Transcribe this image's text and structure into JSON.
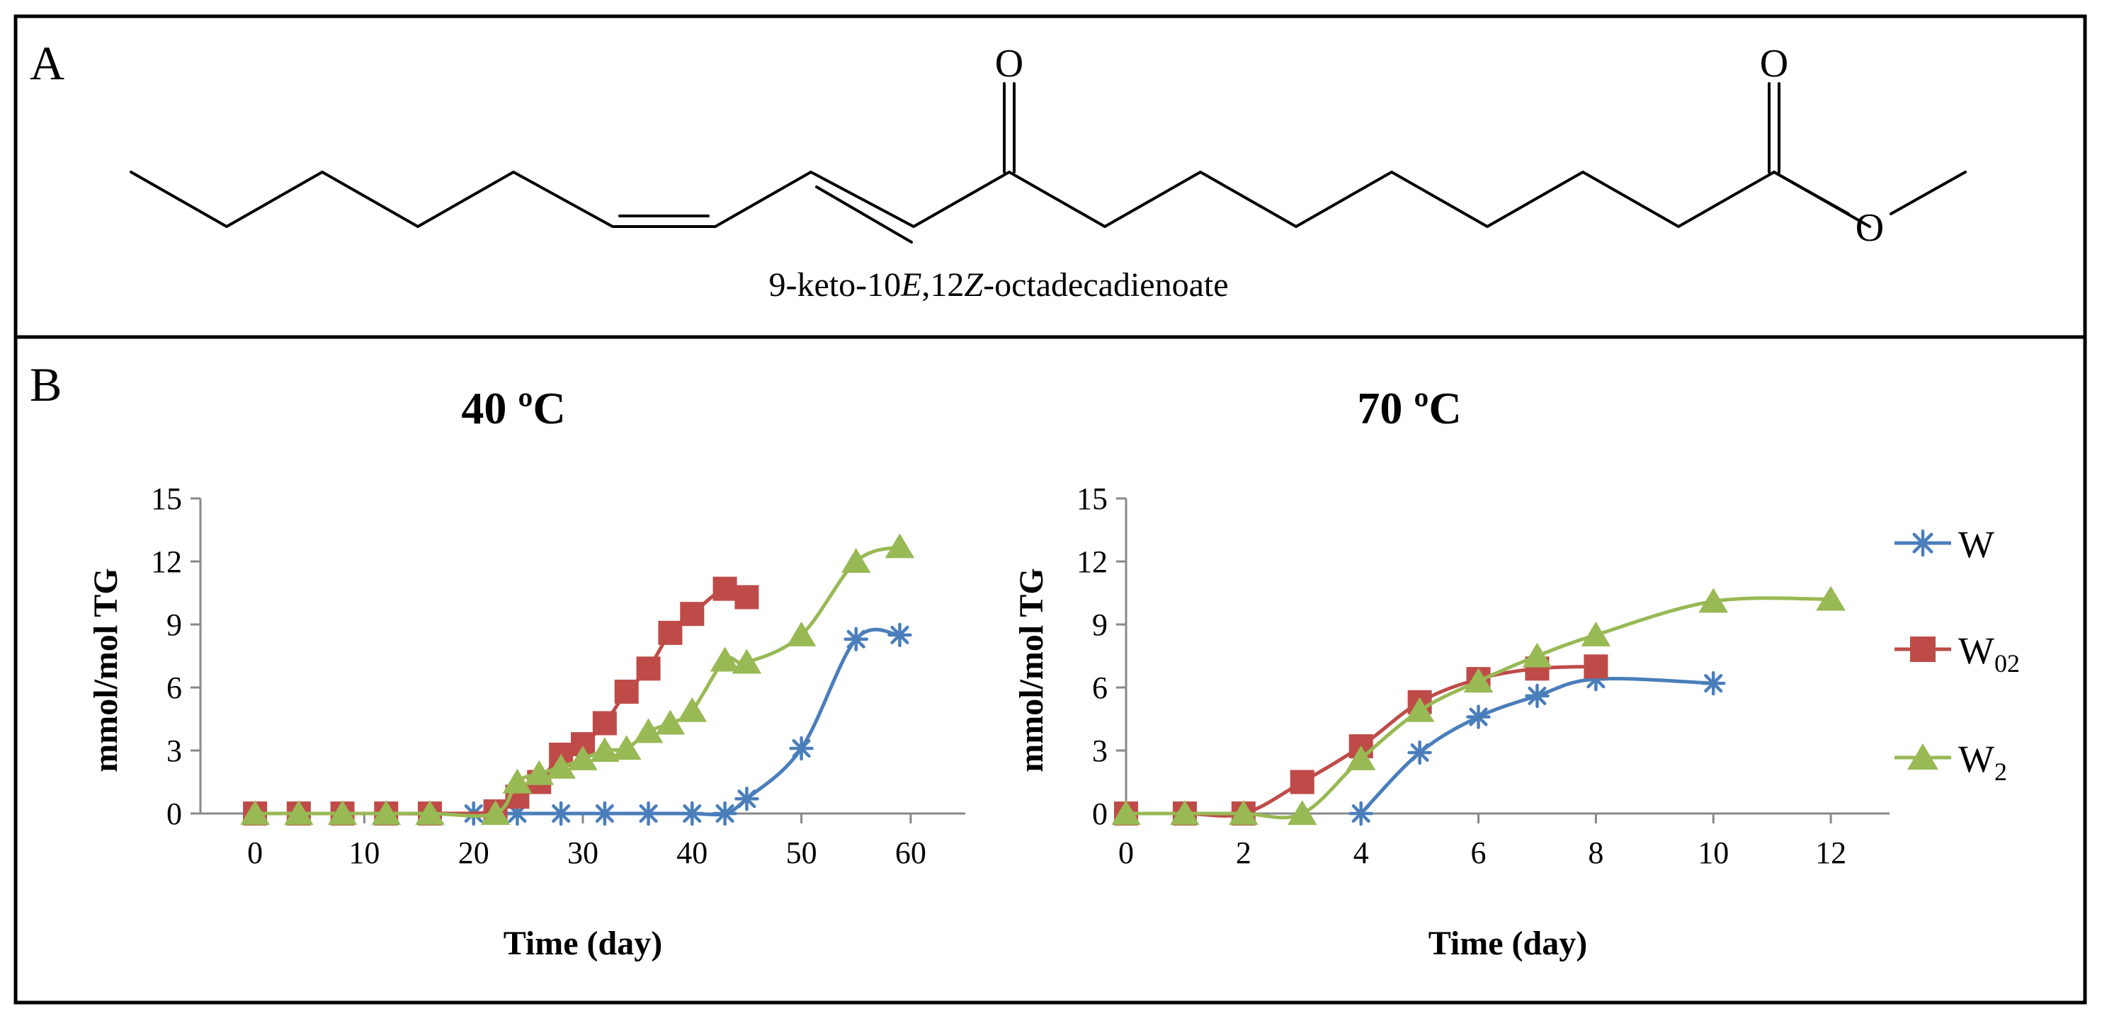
{
  "panel_a": {
    "letter": "A",
    "compound_name_parts": [
      "9-keto-10",
      "E",
      ",12",
      "Z",
      "-octadecadienoate"
    ],
    "atoms": {
      "ketone_oxygen": "O",
      "carbonyl_oxygen": "O",
      "ester_oxygen": "O"
    }
  },
  "panel_b": {
    "letter": "B"
  },
  "legend": [
    {
      "name": "W",
      "base": "W",
      "sub": "",
      "color": "#4a7ebb",
      "marker": "asterisk"
    },
    {
      "name": "W02",
      "base": "W",
      "sub": "02",
      "color": "#be4b48",
      "marker": "square"
    },
    {
      "name": "W2",
      "base": "W",
      "sub": "2",
      "color": "#98b954",
      "marker": "triangle"
    }
  ],
  "chart_data": [
    {
      "type": "line",
      "title": "40 ºC",
      "xlabel": "Time (day)",
      "ylabel": "mmol/mol TG",
      "xlim": [
        -5,
        65
      ],
      "ylim": [
        0,
        15
      ],
      "xticks": [
        0,
        10,
        20,
        30,
        40,
        50,
        60
      ],
      "yticks": [
        0,
        3,
        6,
        9,
        12,
        15
      ],
      "series": [
        {
          "name": "W",
          "x": [
            20,
            24,
            28,
            32,
            36,
            40,
            43,
            45,
            50,
            55,
            59
          ],
          "y": [
            0,
            0,
            0,
            0,
            0,
            0,
            0,
            0.7,
            3.1,
            8.3,
            8.5
          ]
        },
        {
          "name": "W02",
          "x": [
            0,
            4,
            8,
            12,
            16,
            22,
            24,
            26,
            28,
            30,
            32,
            34,
            36,
            38,
            40,
            43,
            45
          ],
          "y": [
            0,
            0,
            0,
            0,
            0,
            0.1,
            0.8,
            1.5,
            2.8,
            3.3,
            4.3,
            5.8,
            6.9,
            8.6,
            9.5,
            10.7,
            10.3
          ]
        },
        {
          "name": "W2",
          "x": [
            0,
            4,
            8,
            12,
            16,
            22,
            24,
            26,
            28,
            30,
            32,
            34,
            36,
            38,
            40,
            43,
            45,
            50,
            55,
            59
          ],
          "y": [
            0,
            0,
            0,
            0,
            0,
            0,
            1.5,
            1.9,
            2.2,
            2.6,
            3.0,
            3.1,
            3.9,
            4.3,
            4.9,
            7.3,
            7.2,
            8.5,
            12.0,
            12.7
          ]
        }
      ]
    },
    {
      "type": "line",
      "title": "70 ºC",
      "xlabel": "Time (day)",
      "ylabel": "mmol/mol TG",
      "xlim": [
        0,
        13
      ],
      "ylim": [
        0,
        15
      ],
      "xticks": [
        0,
        2,
        4,
        6,
        8,
        10,
        12
      ],
      "yticks": [
        0,
        3,
        6,
        9,
        12,
        15
      ],
      "series": [
        {
          "name": "W",
          "x": [
            4,
            5,
            6,
            7,
            8,
            10
          ],
          "y": [
            0,
            2.9,
            4.6,
            5.6,
            6.4,
            6.2
          ]
        },
        {
          "name": "W02",
          "x": [
            0,
            1,
            2,
            3,
            4,
            5,
            6,
            7,
            8
          ],
          "y": [
            0,
            0,
            0,
            1.5,
            3.2,
            5.3,
            6.4,
            6.9,
            7.0
          ]
        },
        {
          "name": "W2",
          "x": [
            0,
            1,
            2,
            3,
            4,
            5,
            6,
            7,
            8,
            10,
            12
          ],
          "y": [
            0,
            0,
            0,
            0,
            2.6,
            4.9,
            6.3,
            7.5,
            8.5,
            10.1,
            10.2
          ]
        }
      ]
    }
  ]
}
